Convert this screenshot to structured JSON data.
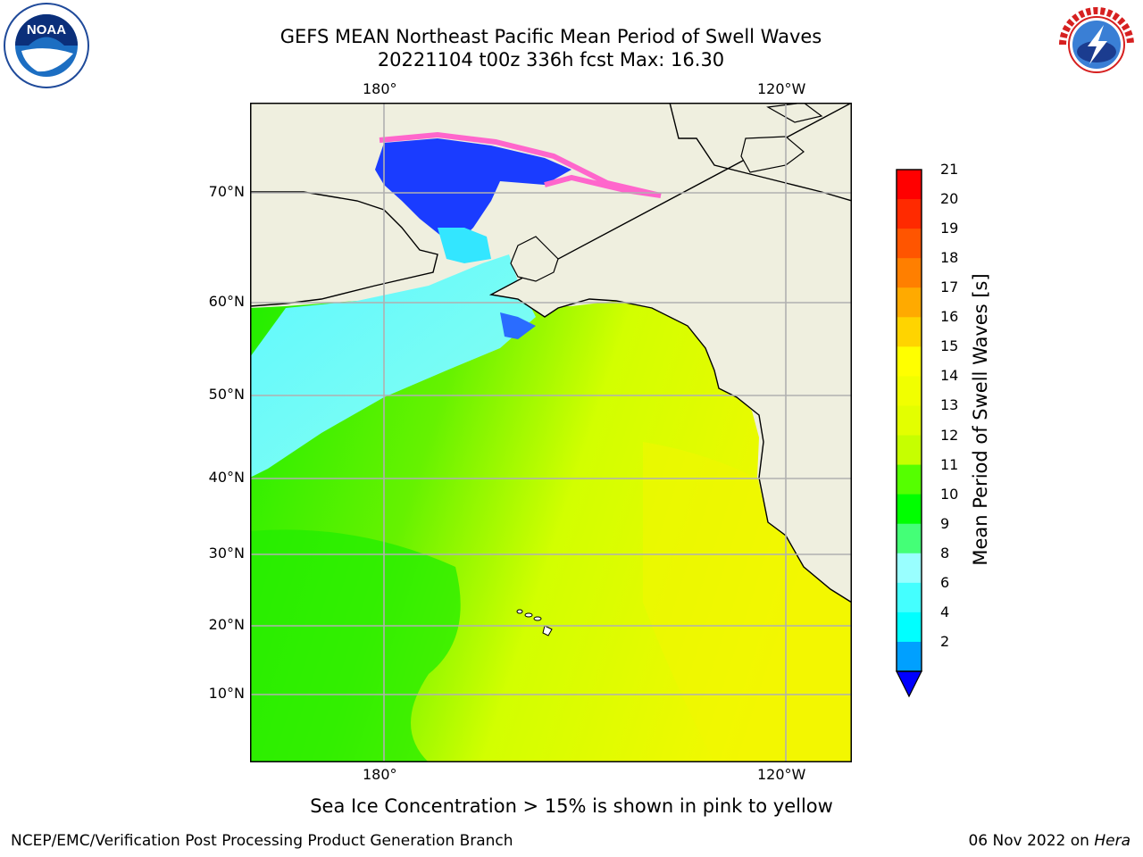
{
  "header": {
    "title_line1": "GEFS MEAN Northeast Pacific Mean Period of Swell Waves",
    "title_line2": "20221104 t00z 336h fcst   Max: 16.30"
  },
  "logos": {
    "left": "noaa-logo",
    "right": "national-weather-service-logo",
    "left_text": "NOAA"
  },
  "map": {
    "x_ticks": [
      "180°",
      "120°W"
    ],
    "y_ticks": [
      "70°N",
      "60°N",
      "50°N",
      "40°N",
      "30°N",
      "20°N",
      "10°N"
    ],
    "land_color": "#efefdf",
    "grid_color": "#b0b0b0"
  },
  "colorbar": {
    "label": "Mean Period of Swell Waves [s]",
    "ticks": [
      "21",
      "20",
      "19",
      "18",
      "17",
      "16",
      "15",
      "14",
      "13",
      "12",
      "11",
      "10",
      "9",
      "8",
      "6",
      "4",
      "2"
    ],
    "colors": [
      "#ff0000",
      "#ff2a00",
      "#ff5500",
      "#ff7f00",
      "#ffaa00",
      "#ffd400",
      "#ffff00",
      "#f1ff00",
      "#e3ff00",
      "#c6ff00",
      "#55ff00",
      "#00ff00",
      "#44ff77",
      "#99ffff",
      "#44ffff",
      "#00ffff",
      "#00a0ff"
    ],
    "extend_color": "#0000ff"
  },
  "notes": {
    "ice": "Sea Ice Concentration > 15% is shown in pink to yellow"
  },
  "footer": {
    "left": "NCEP/EMC/Verification Post Processing Product Generation Branch",
    "right_date": "06 Nov 2022 on ",
    "right_host": "Hera"
  }
}
